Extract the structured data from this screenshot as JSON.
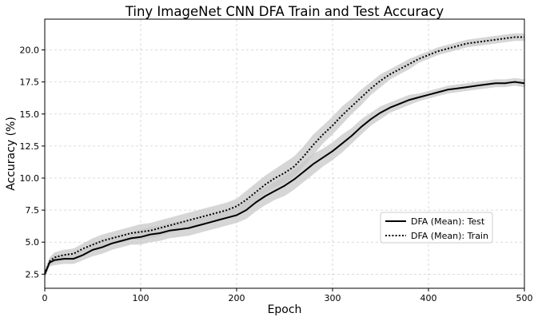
{
  "chart_data": {
    "type": "line",
    "title": "Tiny ImageNet CNN DFA Train and Test Accuracy",
    "xlabel": "Epoch",
    "ylabel": "Accuracy (%)",
    "xlim": [
      0,
      500
    ],
    "ylim": [
      1.4,
      22.4
    ],
    "x_ticks": [
      0,
      100,
      200,
      300,
      400,
      500
    ],
    "y_ticks": [
      2.5,
      5.0,
      7.5,
      10.0,
      12.5,
      15.0,
      17.5,
      20.0
    ],
    "grid": true,
    "legend_position": "lower-right",
    "band_color": "#c8c8c8",
    "series": [
      {
        "name": "DFA (Mean): Test",
        "style": "solid",
        "color": "#000000",
        "x": [
          0,
          5,
          10,
          20,
          30,
          40,
          50,
          60,
          70,
          80,
          90,
          100,
          110,
          120,
          130,
          140,
          150,
          160,
          170,
          180,
          190,
          200,
          210,
          220,
          230,
          240,
          250,
          260,
          270,
          280,
          290,
          300,
          310,
          320,
          330,
          340,
          350,
          360,
          370,
          380,
          390,
          400,
          410,
          420,
          430,
          440,
          450,
          460,
          470,
          480,
          490,
          500
        ],
        "y": [
          2.5,
          3.4,
          3.6,
          3.7,
          3.7,
          4.0,
          4.4,
          4.6,
          4.9,
          5.1,
          5.3,
          5.4,
          5.6,
          5.7,
          5.9,
          6.0,
          6.1,
          6.3,
          6.5,
          6.7,
          6.9,
          7.1,
          7.5,
          8.1,
          8.6,
          9.0,
          9.4,
          9.9,
          10.5,
          11.1,
          11.6,
          12.1,
          12.7,
          13.3,
          14.0,
          14.6,
          15.1,
          15.5,
          15.8,
          16.1,
          16.3,
          16.5,
          16.7,
          16.9,
          17.0,
          17.1,
          17.2,
          17.3,
          17.4,
          17.4,
          17.5,
          17.4
        ],
        "band": [
          0.3,
          0.3,
          0.4,
          0.4,
          0.4,
          0.4,
          0.5,
          0.5,
          0.5,
          0.5,
          0.5,
          0.6,
          0.6,
          0.6,
          0.6,
          0.6,
          0.6,
          0.6,
          0.6,
          0.6,
          0.6,
          0.6,
          0.7,
          0.7,
          0.7,
          0.7,
          0.8,
          0.8,
          0.8,
          0.8,
          0.7,
          0.7,
          0.7,
          0.6,
          0.6,
          0.5,
          0.5,
          0.4,
          0.4,
          0.4,
          0.3,
          0.3,
          0.3,
          0.3,
          0.3,
          0.3,
          0.3,
          0.3,
          0.3,
          0.3,
          0.3,
          0.3
        ]
      },
      {
        "name": "DFA (Mean): Train",
        "style": "dotted",
        "color": "#000000",
        "x": [
          0,
          5,
          10,
          20,
          30,
          40,
          50,
          60,
          70,
          80,
          90,
          100,
          110,
          120,
          130,
          140,
          150,
          160,
          170,
          180,
          190,
          200,
          210,
          220,
          230,
          240,
          250,
          260,
          270,
          280,
          290,
          300,
          310,
          320,
          330,
          340,
          350,
          360,
          370,
          380,
          390,
          400,
          410,
          420,
          430,
          440,
          450,
          460,
          470,
          480,
          490,
          500
        ],
        "y": [
          2.5,
          3.5,
          3.8,
          4.0,
          4.1,
          4.5,
          4.8,
          5.1,
          5.3,
          5.5,
          5.7,
          5.8,
          5.9,
          6.1,
          6.3,
          6.5,
          6.7,
          6.9,
          7.1,
          7.3,
          7.5,
          7.8,
          8.3,
          8.9,
          9.5,
          10.0,
          10.4,
          10.9,
          11.7,
          12.6,
          13.4,
          14.1,
          14.9,
          15.6,
          16.3,
          17.0,
          17.6,
          18.1,
          18.5,
          18.9,
          19.3,
          19.6,
          19.9,
          20.1,
          20.3,
          20.5,
          20.6,
          20.7,
          20.8,
          20.9,
          21.0,
          21.0
        ],
        "band": [
          0.3,
          0.3,
          0.4,
          0.4,
          0.4,
          0.4,
          0.5,
          0.5,
          0.5,
          0.5,
          0.5,
          0.6,
          0.6,
          0.6,
          0.6,
          0.6,
          0.6,
          0.6,
          0.6,
          0.6,
          0.6,
          0.6,
          0.7,
          0.7,
          0.7,
          0.7,
          0.8,
          0.8,
          0.8,
          0.8,
          0.7,
          0.7,
          0.7,
          0.6,
          0.6,
          0.5,
          0.5,
          0.4,
          0.4,
          0.4,
          0.3,
          0.3,
          0.3,
          0.3,
          0.3,
          0.3,
          0.3,
          0.3,
          0.3,
          0.3,
          0.3,
          0.3
        ]
      }
    ]
  }
}
